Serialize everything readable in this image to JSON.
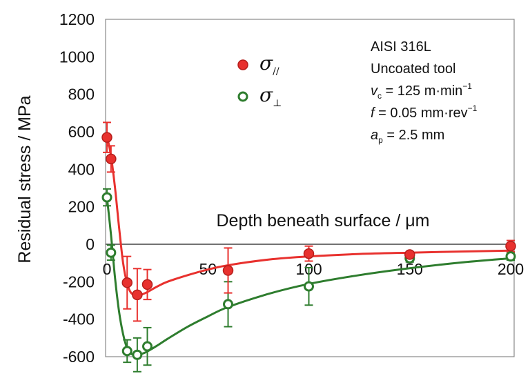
{
  "chart_data": {
    "type": "scatter",
    "xlabel": "Depth beneath surface / μm",
    "ylabel": "Residual stress / MPa",
    "xlim": [
      0,
      200
    ],
    "ylim": [
      -600,
      1200
    ],
    "x_ticks": [
      "0",
      "50",
      "100",
      "150",
      "200"
    ],
    "y_ticks": [
      "1200",
      "1000",
      "800",
      "600",
      "400",
      "200",
      "0",
      "-200",
      "-400",
      "-600"
    ],
    "grid": false,
    "legend_position": "top-center",
    "series": [
      {
        "name": "σ∥",
        "symbol_base": "σ",
        "symbol_sub": "//",
        "color": "#e8312e",
        "fit_color": "#e8312e",
        "marker": "filled-circle",
        "points": [
          {
            "x": 0,
            "y": 570,
            "err": 80
          },
          {
            "x": 2,
            "y": 455,
            "err": 70
          },
          {
            "x": 10,
            "y": -205,
            "err": 140
          },
          {
            "x": 15,
            "y": -270,
            "err": 140
          },
          {
            "x": 20,
            "y": -215,
            "err": 80
          },
          {
            "x": 60,
            "y": -140,
            "err": 120
          },
          {
            "x": 100,
            "y": -50,
            "err": 40
          },
          {
            "x": 150,
            "y": -55,
            "err": 15
          },
          {
            "x": 200,
            "y": -10,
            "err": 30
          }
        ],
        "fit": [
          [
            0,
            580
          ],
          [
            2,
            470
          ],
          [
            4,
            300
          ],
          [
            6,
            90
          ],
          [
            8,
            -100
          ],
          [
            10,
            -210
          ],
          [
            12,
            -260
          ],
          [
            15,
            -275
          ],
          [
            18,
            -265
          ],
          [
            20,
            -255
          ],
          [
            25,
            -225
          ],
          [
            30,
            -200
          ],
          [
            40,
            -165
          ],
          [
            50,
            -135
          ],
          [
            60,
            -112
          ],
          [
            80,
            -82
          ],
          [
            100,
            -65
          ],
          [
            125,
            -52
          ],
          [
            150,
            -45
          ],
          [
            175,
            -39
          ],
          [
            200,
            -34
          ]
        ]
      },
      {
        "name": "σ⊥",
        "symbol_base": "σ",
        "symbol_sub": "⊥",
        "color": "#2e7d2e",
        "fit_color": "#2e7d2e",
        "marker": "open-circle",
        "points": [
          {
            "x": 0,
            "y": 250,
            "err": 45
          },
          {
            "x": 2,
            "y": -45,
            "err": 40
          },
          {
            "x": 10,
            "y": -570,
            "err": 60
          },
          {
            "x": 15,
            "y": -590,
            "err": 90
          },
          {
            "x": 20,
            "y": -545,
            "err": 100
          },
          {
            "x": 60,
            "y": -320,
            "err": 120
          },
          {
            "x": 100,
            "y": -225,
            "err": 100
          },
          {
            "x": 150,
            "y": -75,
            "err": 20
          },
          {
            "x": 200,
            "y": -65,
            "err": 20
          }
        ],
        "fit": [
          [
            0,
            250
          ],
          [
            2,
            50
          ],
          [
            4,
            -180
          ],
          [
            6,
            -360
          ],
          [
            8,
            -480
          ],
          [
            10,
            -555
          ],
          [
            12,
            -585
          ],
          [
            15,
            -592
          ],
          [
            18,
            -582
          ],
          [
            20,
            -572
          ],
          [
            25,
            -540
          ],
          [
            30,
            -505
          ],
          [
            40,
            -440
          ],
          [
            50,
            -385
          ],
          [
            60,
            -335
          ],
          [
            80,
            -265
          ],
          [
            100,
            -212
          ],
          [
            125,
            -165
          ],
          [
            150,
            -128
          ],
          [
            175,
            -98
          ],
          [
            200,
            -75
          ]
        ]
      }
    ],
    "annotation": {
      "material": "AISI 316L",
      "tool": "Uncoated tool",
      "vc": {
        "sym": "v",
        "sub": "c",
        "text": " = 125 m·min",
        "sup": "−1"
      },
      "f": {
        "sym": "f",
        "text": " = 0.05 mm·rev",
        "sup": "−1"
      },
      "ap": {
        "sym": "a",
        "sub": "p",
        "text": " = 2.5 mm"
      }
    }
  }
}
